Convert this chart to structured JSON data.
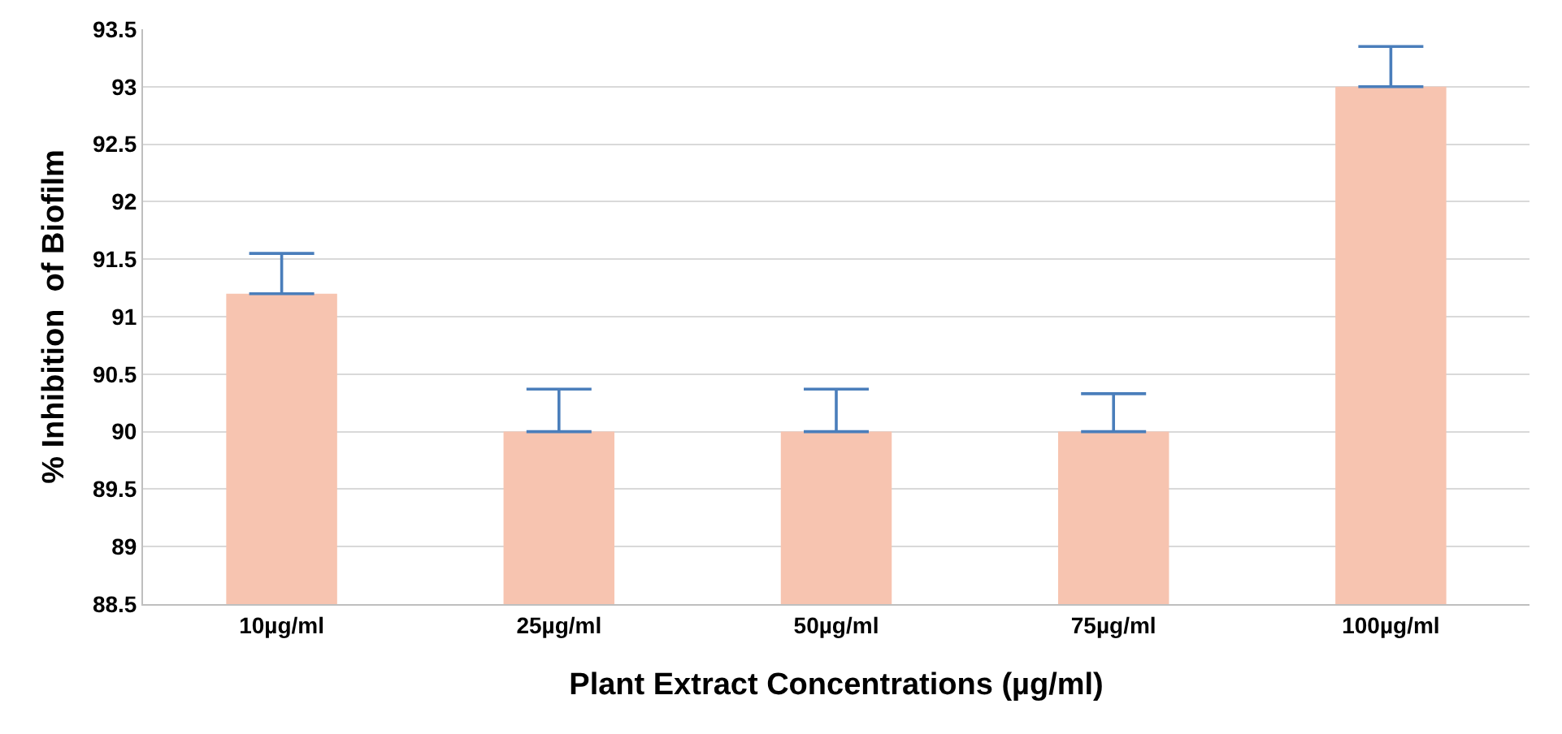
{
  "chart_data": {
    "type": "bar",
    "xlabel": "Plant Extract Concentrations (µg/ml)",
    "ylabel": "% Inhibition  of Biofilm",
    "categories": [
      "10µg/ml",
      "25µg/ml",
      "50µg/ml",
      "75µg/ml",
      "100µg/ml"
    ],
    "values": [
      91.2,
      90,
      90,
      90,
      93
    ],
    "errors": [
      [
        91.2,
        91.55
      ],
      [
        90,
        90.37
      ],
      [
        90,
        90.37
      ],
      [
        90,
        90.33
      ],
      [
        93,
        93.35
      ]
    ],
    "color": "#f7c4b0",
    "ylim": [
      88.5,
      93.5
    ],
    "yticks": [
      88.5,
      89,
      89.5,
      90,
      90.5,
      91,
      91.5,
      92,
      92.5,
      93,
      93.5
    ],
    "grid": "y",
    "legend": false
  }
}
